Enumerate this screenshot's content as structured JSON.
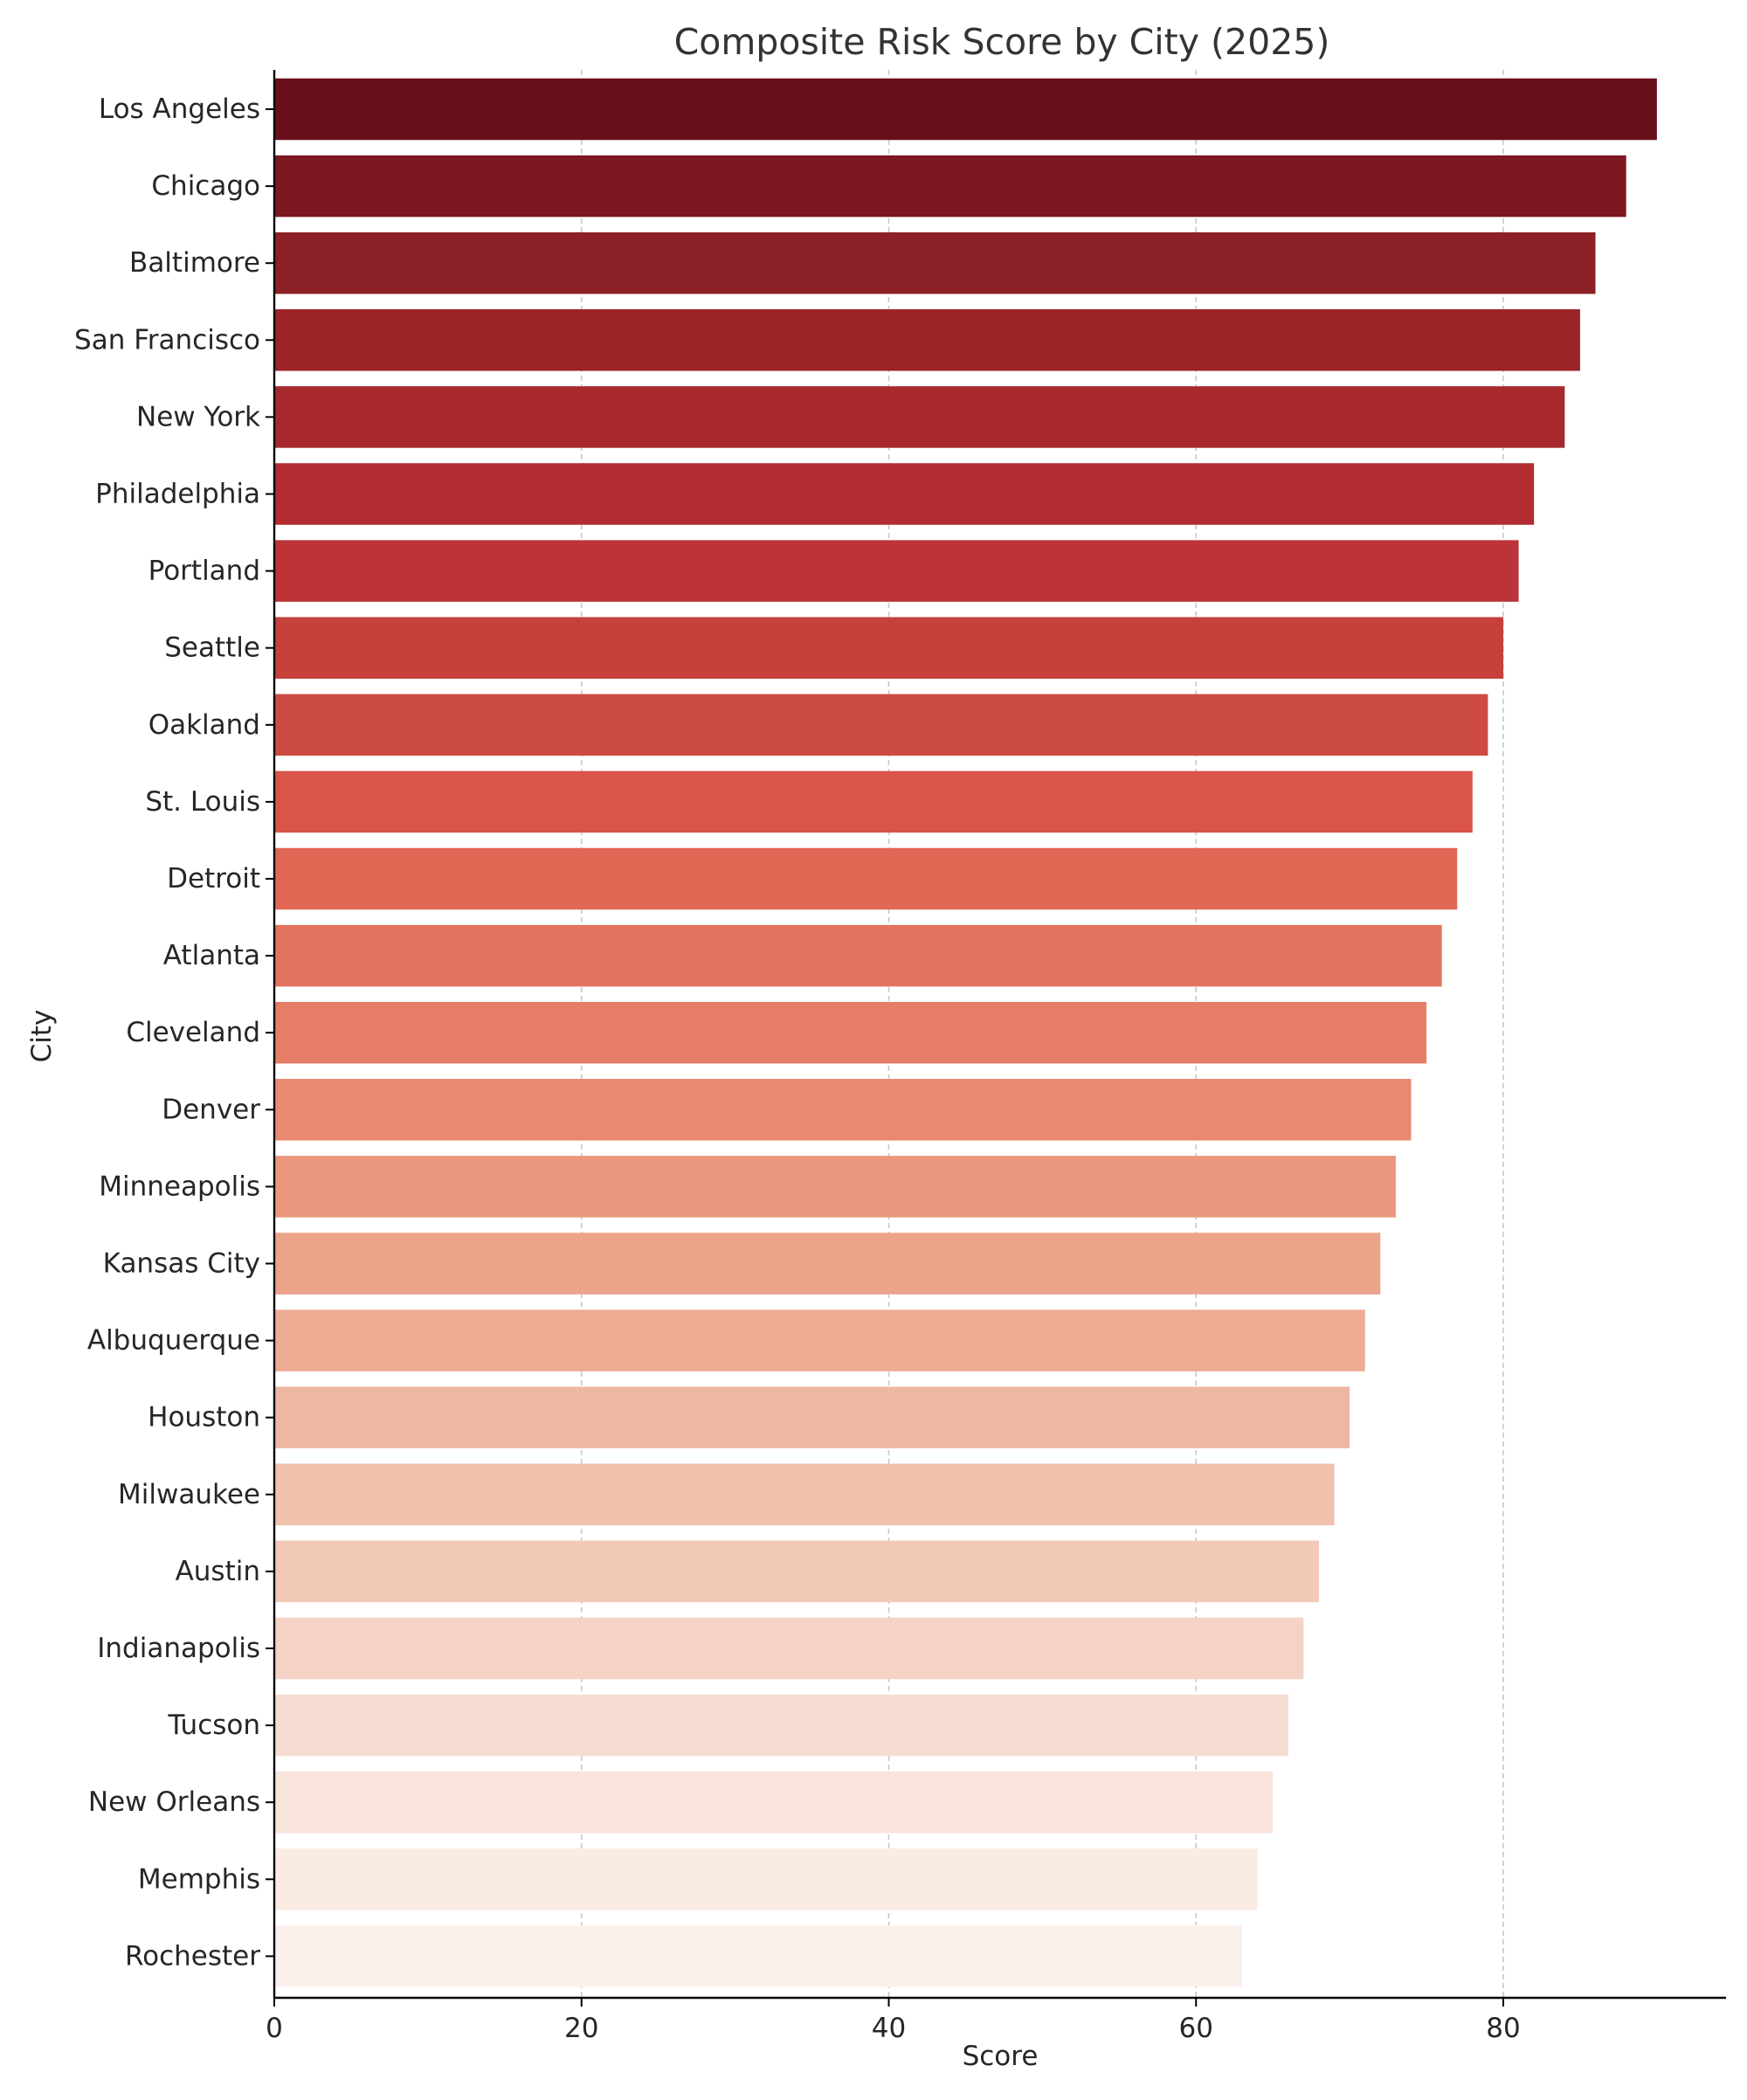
{
  "chart_data": {
    "type": "bar",
    "orientation": "horizontal",
    "title": "Composite Risk Score by City (2025)",
    "xlabel": "Score",
    "ylabel": "City",
    "xlim": [
      0,
      94.5
    ],
    "xticks": [
      0,
      20,
      40,
      60,
      80
    ],
    "grid": "vertical dashed",
    "legend": "none",
    "categories": [
      "Los Angeles",
      "Chicago",
      "Baltimore",
      "San Francisco",
      "New York",
      "Philadelphia",
      "Portland",
      "Seattle",
      "Oakland",
      "St. Louis",
      "Detroit",
      "Atlanta",
      "Cleveland",
      "Denver",
      "Minneapolis",
      "Kansas City",
      "Albuquerque",
      "Houston",
      "Milwaukee",
      "Austin",
      "Indianapolis",
      "Tucson",
      "New Orleans",
      "Memphis",
      "Rochester"
    ],
    "values": [
      90,
      88,
      86,
      85,
      84,
      82,
      81,
      80,
      79,
      78,
      77,
      76,
      75,
      74,
      73,
      72,
      71,
      70,
      69,
      68,
      67,
      66,
      65,
      64,
      63
    ],
    "colors": [
      "#67101b",
      "#7b1820",
      "#8b2026",
      "#9b2328",
      "#a7282d",
      "#b22c31",
      "#bc3437",
      "#c6403c",
      "#cc4c43",
      "#da5549",
      "#e06754",
      "#e3735e",
      "#e67e67",
      "#e88a71",
      "#e9977d",
      "#eba389",
      "#ecab92",
      "#eeb7a1",
      "#f0c1ad",
      "#f2c9b7",
      "#f4d3c6",
      "#f6dcd2",
      "#f8e4da",
      "#faebe3",
      "#fbf1ec"
    ]
  }
}
